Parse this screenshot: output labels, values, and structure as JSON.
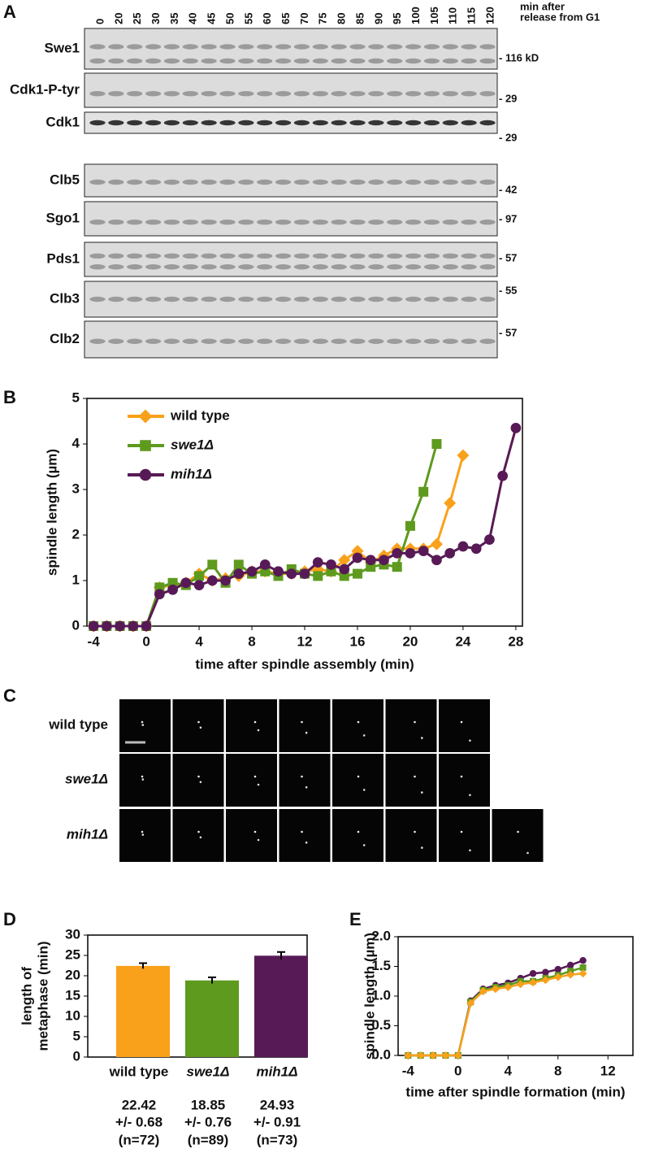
{
  "panel_labels": [
    "A",
    "B",
    "C",
    "D",
    "E"
  ],
  "blot": {
    "time_header": [
      "min after",
      "release from G1"
    ],
    "timepoints": [
      "0",
      "20",
      "25",
      "30",
      "35",
      "40",
      "45",
      "50",
      "55",
      "60",
      "65",
      "70",
      "75",
      "80",
      "85",
      "90",
      "95",
      "100",
      "105",
      "110",
      "115",
      "120"
    ],
    "rows": [
      {
        "label": "Swe1",
        "marker": "- 116 kD"
      },
      {
        "label": "Cdk1-P-tyr",
        "marker": "- 29"
      },
      {
        "label": "Cdk1",
        "marker": "- 29"
      },
      {
        "label": "Clb5",
        "marker": "- 42"
      },
      {
        "label": "Sgo1",
        "marker": "- 97"
      },
      {
        "label": "Pds1",
        "marker": "- 57"
      },
      {
        "label": "Clb3",
        "marker": "- 55"
      },
      {
        "label": "Clb2",
        "marker": "- 57"
      }
    ]
  },
  "microscopy": {
    "rows": [
      {
        "label": "wild type"
      },
      {
        "label": "swe1Δ"
      },
      {
        "label": "mih1Δ"
      }
    ]
  },
  "chart_data": [
    {
      "type": "line",
      "ylabel": "spindle length (µm)",
      "xlabel": "time after spindle assembly (min)",
      "xlim": [
        -4.5,
        28.5
      ],
      "xticks": [
        -4,
        0,
        4,
        8,
        12,
        16,
        20,
        24,
        28
      ],
      "ylim": [
        0,
        5
      ],
      "yticks": [
        0,
        1,
        2,
        3,
        4,
        5
      ],
      "legend": "upper left",
      "series": [
        {
          "name": "wild type",
          "color": "#f9a11b",
          "marker": "diamond",
          "x": [
            -4,
            -3,
            -2,
            -1,
            0,
            1,
            2,
            3,
            4,
            5,
            6,
            7,
            8,
            9,
            10,
            11,
            12,
            13,
            14,
            15,
            16,
            17,
            18,
            19,
            20,
            21,
            22,
            23,
            24
          ],
          "values": [
            0,
            0,
            0,
            0,
            0,
            0.85,
            0.9,
            0.95,
            1.15,
            1.0,
            1.05,
            1.1,
            1.2,
            1.2,
            1.15,
            1.15,
            1.2,
            1.25,
            1.2,
            1.45,
            1.65,
            1.4,
            1.55,
            1.7,
            1.7,
            1.7,
            1.8,
            2.7,
            3.75
          ]
        },
        {
          "name": "swe1Δ",
          "color": "#5e9a1e",
          "marker": "square",
          "x": [
            -4,
            -3,
            -2,
            -1,
            0,
            1,
            2,
            3,
            4,
            5,
            6,
            7,
            8,
            9,
            10,
            11,
            12,
            13,
            14,
            15,
            16,
            17,
            18,
            19,
            20,
            21,
            22
          ],
          "values": [
            0,
            0,
            0,
            0,
            0,
            0.85,
            0.95,
            0.9,
            1.1,
            1.35,
            0.95,
            1.35,
            1.15,
            1.2,
            1.1,
            1.25,
            1.15,
            1.1,
            1.2,
            1.1,
            1.15,
            1.3,
            1.35,
            1.3,
            2.2,
            2.95,
            4.0
          ]
        },
        {
          "name": "mih1Δ",
          "color": "#581a56",
          "marker": "circle",
          "x": [
            -4,
            -3,
            -2,
            -1,
            0,
            1,
            2,
            3,
            4,
            5,
            6,
            7,
            8,
            9,
            10,
            11,
            12,
            13,
            14,
            15,
            16,
            17,
            18,
            19,
            20,
            21,
            22,
            23,
            24,
            25,
            26,
            27,
            28
          ],
          "values": [
            0,
            0,
            0,
            0,
            0,
            0.7,
            0.8,
            0.95,
            0.9,
            1.0,
            1.0,
            1.15,
            1.2,
            1.35,
            1.2,
            1.15,
            1.15,
            1.4,
            1.35,
            1.25,
            1.5,
            1.45,
            1.45,
            1.6,
            1.6,
            1.65,
            1.45,
            1.6,
            1.75,
            1.7,
            1.9,
            3.3,
            4.35
          ]
        }
      ]
    },
    {
      "type": "bar",
      "ylabel": [
        "length of",
        "metaphase (min)"
      ],
      "categories": [
        "wild type",
        "swe1Δ",
        "mih1Δ"
      ],
      "values": [
        22.42,
        18.85,
        24.93
      ],
      "errors": [
        0.68,
        0.76,
        0.91
      ],
      "error_labels": [
        "+/- 0.68",
        "+/- 0.76",
        "+/- 0.91"
      ],
      "n_labels": [
        "(n=72)",
        "(n=89)",
        "(n=73)"
      ],
      "colors": [
        "#f9a11b",
        "#5e9a1e",
        "#581a56"
      ],
      "ylim": [
        0,
        30
      ],
      "yticks": [
        0,
        5,
        10,
        15,
        20,
        25,
        30
      ]
    },
    {
      "type": "line",
      "ylabel": "spindle length (µm)",
      "xlabel": "time after spindle formation (min)",
      "xlim": [
        -4.8,
        14
      ],
      "xticks": [
        -4,
        0,
        4,
        8,
        12
      ],
      "ylim": [
        0,
        2
      ],
      "yticks": [
        {
          "value": 0,
          "label": "0.0"
        },
        {
          "value": 0.5,
          "label": "0.5"
        },
        {
          "value": 1,
          "label": "1.0"
        },
        {
          "value": 1.5,
          "label": "1.5"
        },
        {
          "value": 2,
          "label": "2.0"
        }
      ],
      "series": [
        {
          "name": "mih1Δ",
          "color": "#581a56",
          "marker": "circle",
          "x": [
            -4,
            -3,
            -2,
            -1,
            0,
            1,
            2,
            3,
            4,
            5,
            6,
            7,
            8,
            9,
            10
          ],
          "values": [
            0,
            0,
            0,
            0,
            0,
            0.92,
            1.12,
            1.18,
            1.22,
            1.3,
            1.38,
            1.4,
            1.45,
            1.52,
            1.6
          ]
        },
        {
          "name": "swe1Δ",
          "color": "#5e9a1e",
          "marker": "square",
          "x": [
            -4,
            -3,
            -2,
            -1,
            0,
            1,
            2,
            3,
            4,
            5,
            6,
            7,
            8,
            9,
            10
          ],
          "values": [
            0,
            0,
            0,
            0,
            0,
            0.9,
            1.1,
            1.15,
            1.18,
            1.25,
            1.25,
            1.3,
            1.35,
            1.42,
            1.48
          ]
        },
        {
          "name": "wild type",
          "color": "#f9a11b",
          "marker": "diamond",
          "x": [
            -4,
            -3,
            -2,
            -1,
            0,
            1,
            2,
            3,
            4,
            5,
            6,
            7,
            8,
            9,
            10
          ],
          "values": [
            0,
            0,
            0,
            0,
            0,
            0.88,
            1.08,
            1.12,
            1.15,
            1.2,
            1.23,
            1.27,
            1.32,
            1.36,
            1.38
          ]
        }
      ]
    }
  ]
}
